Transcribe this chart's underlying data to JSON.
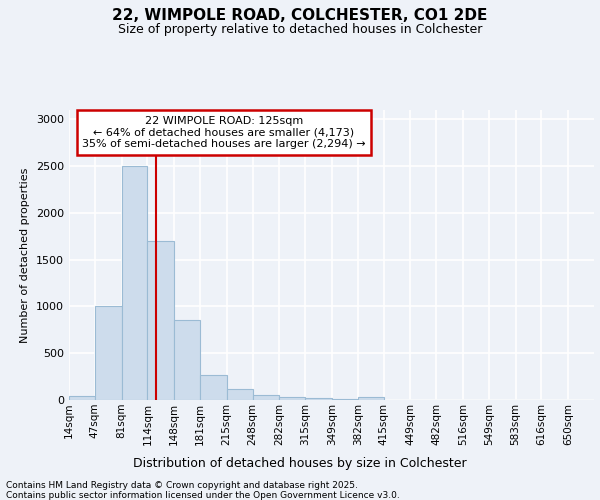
{
  "title_line1": "22, WIMPOLE ROAD, COLCHESTER, CO1 2DE",
  "title_line2": "Size of property relative to detached houses in Colchester",
  "xlabel": "Distribution of detached houses by size in Colchester",
  "ylabel": "Number of detached properties",
  "footnote1": "Contains HM Land Registry data © Crown copyright and database right 2025.",
  "footnote2": "Contains public sector information licensed under the Open Government Licence v3.0.",
  "annotation_title": "22 WIMPOLE ROAD: 125sqm",
  "annotation_line2": "← 64% of detached houses are smaller (4,173)",
  "annotation_line3": "35% of semi-detached houses are larger (2,294) →",
  "property_value": 125,
  "bar_edges": [
    14,
    47,
    81,
    114,
    148,
    181,
    215,
    248,
    282,
    315,
    349,
    382,
    415,
    449,
    482,
    516,
    549,
    583,
    616,
    650,
    683
  ],
  "bar_heights": [
    40,
    1000,
    2500,
    1700,
    850,
    270,
    120,
    55,
    30,
    20,
    8,
    30,
    5,
    3,
    2,
    2,
    1,
    1,
    1,
    0
  ],
  "bar_color": "#cddcec",
  "bar_edge_color": "#9bbbd4",
  "marker_color": "#cc0000",
  "ylim": [
    0,
    3100
  ],
  "yticks": [
    0,
    500,
    1000,
    1500,
    2000,
    2500,
    3000
  ],
  "bg_color": "#eef2f8",
  "plot_bg_color": "#eef2f8",
  "grid_color": "#ffffff",
  "annotation_box_color": "#cc0000",
  "title1_fontsize": 11,
  "title2_fontsize": 9,
  "ylabel_fontsize": 8,
  "xlabel_fontsize": 9,
  "tick_fontsize": 7.5,
  "ytick_fontsize": 8,
  "footnote_fontsize": 6.5
}
